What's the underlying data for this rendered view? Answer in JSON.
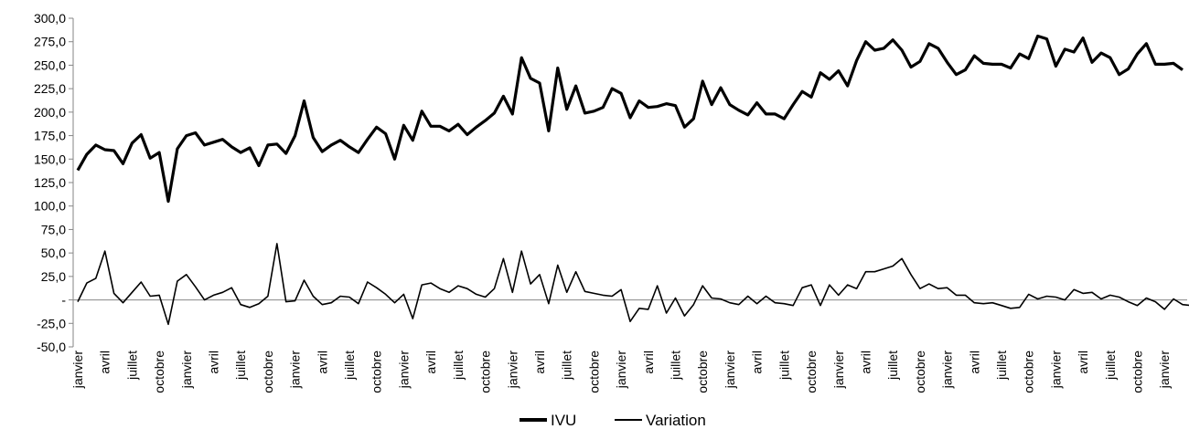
{
  "chart_data": {
    "type": "line",
    "x_tick_labels": [
      "janvier",
      "avril",
      "juillet",
      "octobre",
      "janvier",
      "avril",
      "juillet",
      "octobre",
      "janvier",
      "avril",
      "juillet",
      "octobre",
      "janvier",
      "avril",
      "juillet",
      "octobre",
      "janvier",
      "avril",
      "juillet",
      "octobre",
      "janvier",
      "avril",
      "juillet",
      "octobre",
      "janvier",
      "avril",
      "juillet",
      "octobre",
      "janvier",
      "avril",
      "juillet",
      "octobre",
      "janvier",
      "avril",
      "juillet",
      "octobre",
      "janvier",
      "avril",
      "juillet",
      "octobre",
      "janvier"
    ],
    "y_tick_labels": [
      "300,0",
      "275,0",
      "250,0",
      "225,0",
      "200,0",
      "175,0",
      "150,0",
      "125,0",
      "100,0",
      "75,0",
      "50,0",
      "25,0",
      "-",
      "-25,0",
      "-50,0"
    ],
    "ylim": [
      -50,
      300
    ],
    "ytick_step": 25,
    "grid": false,
    "legend_position": "bottom",
    "series": [
      {
        "name": "IVU",
        "color": "#000000",
        "values": [
          138,
          155,
          165,
          160,
          159,
          145,
          167,
          176,
          151,
          157,
          105,
          161,
          175,
          178,
          165,
          168,
          171,
          163,
          157,
          162,
          143,
          165,
          166,
          156,
          175,
          212,
          173,
          158,
          165,
          170,
          163,
          157,
          171,
          184,
          177,
          150,
          186,
          170,
          201,
          185,
          185,
          180,
          187,
          176,
          184,
          191,
          199,
          217,
          198,
          258,
          236,
          231,
          180,
          247,
          203,
          228,
          199,
          201,
          205,
          225,
          220,
          194,
          212,
          205,
          206,
          209,
          207,
          184,
          193,
          233,
          208,
          226,
          208,
          202,
          197,
          210,
          198,
          198,
          193,
          208,
          222,
          216,
          242,
          235,
          244,
          228,
          255,
          275,
          266,
          268,
          277,
          266,
          248,
          254,
          273,
          268,
          253,
          240,
          245,
          260,
          252,
          251,
          251,
          247,
          262,
          257,
          281,
          278,
          249,
          267,
          264,
          279,
          253,
          263,
          258,
          240,
          246,
          262,
          273,
          251,
          251,
          252,
          245
        ]
      },
      {
        "name": "Variation",
        "color": "#000000",
        "values": [
          -2,
          18,
          23,
          52,
          7,
          -3,
          8,
          19,
          4,
          5,
          -26,
          20,
          27,
          14,
          0,
          5,
          8,
          13,
          -5,
          -8,
          -4,
          4,
          60,
          -2,
          -1,
          21,
          4,
          -5,
          -3,
          4,
          3,
          -4,
          19,
          13,
          6,
          -3,
          6,
          -20,
          16,
          18,
          12,
          8,
          15,
          12,
          6,
          3,
          12,
          44,
          8,
          52,
          17,
          27,
          -4,
          37,
          8,
          30,
          9,
          7,
          5,
          4,
          11,
          -23,
          -9,
          -10,
          15,
          -14,
          2,
          -17,
          -5,
          15,
          2,
          1,
          -3,
          -5,
          4,
          -4,
          4,
          -3,
          -4,
          -6,
          13,
          16,
          -6,
          16,
          5,
          16,
          12,
          30,
          30,
          33,
          36,
          44,
          27,
          12,
          17,
          12,
          13,
          5,
          5,
          -3,
          -4,
          -3,
          -6,
          -9,
          -8,
          6,
          1,
          4,
          3,
          0,
          11,
          7,
          8,
          1,
          5,
          3,
          -2,
          -6,
          2,
          -2,
          -10,
          1,
          -5,
          -6
        ]
      }
    ]
  }
}
